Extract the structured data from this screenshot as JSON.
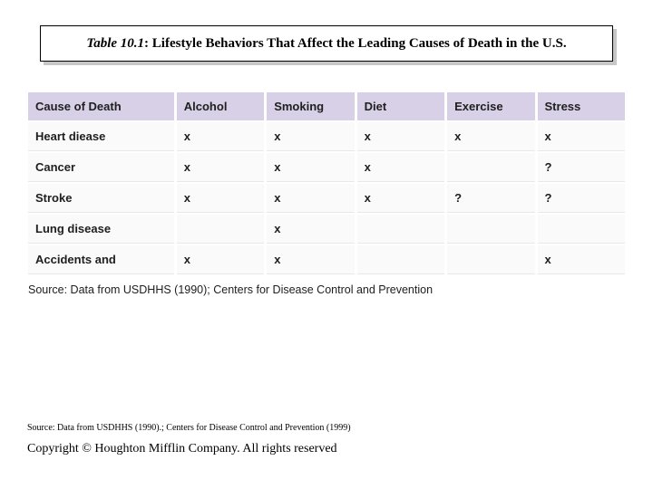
{
  "title": {
    "prefix": "Table 10.1",
    "rest": ": Lifestyle Behaviors That Affect the Leading Causes of Death in the U.S."
  },
  "table": {
    "type": "table",
    "header_bg": "#d7d0e6",
    "cell_bg": "#fafafa",
    "text_color": "#202020",
    "font_family": "Verdana",
    "header_fontsize": 13,
    "cell_fontsize": 13,
    "font_weight": "bold",
    "column_widths_pct": [
      25,
      15,
      15,
      15,
      15,
      15
    ],
    "columns": [
      "Cause of Death",
      "Alcohol",
      "Smoking",
      "Diet",
      "Exercise",
      "Stress"
    ],
    "rows": [
      [
        "Heart diease",
        "x",
        "x",
        "x",
        "x",
        "x"
      ],
      [
        "Cancer",
        "x",
        "x",
        "x",
        "",
        "?"
      ],
      [
        "Stroke",
        "x",
        "x",
        "x",
        "?",
        "?"
      ],
      [
        "Lung disease",
        "",
        "x",
        "",
        "",
        ""
      ],
      [
        "Accidents and",
        "x",
        "x",
        "",
        "",
        "x"
      ]
    ]
  },
  "source_under_table": "Source: Data from USDHHS (1990); Centers for Disease Control and Prevention",
  "bottom": {
    "attribution": "Source: Data from USDHHS (1990).; Centers for Disease Control and Prevention (1999)",
    "copyright": "Copyright © Houghton Mifflin Company.  All rights reserved"
  },
  "colors": {
    "background": "#ffffff",
    "title_border": "#000000",
    "title_shadow": "#c7c7c7"
  }
}
